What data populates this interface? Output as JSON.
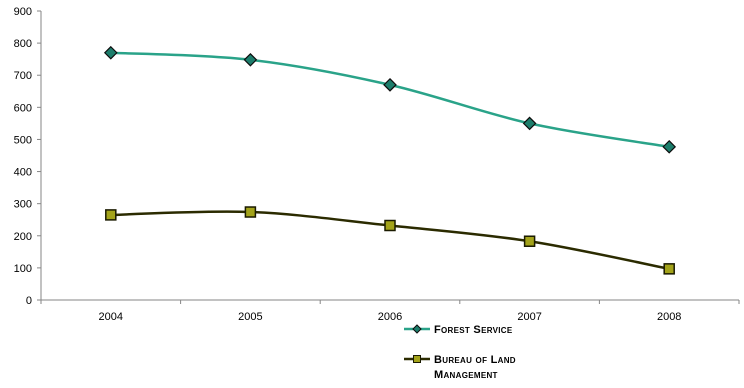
{
  "chart_data": {
    "type": "line",
    "categories": [
      "2004",
      "2005",
      "2006",
      "2007",
      "2008"
    ],
    "series": [
      {
        "name": "Forest Service",
        "values": [
          770,
          748,
          670,
          550,
          477
        ],
        "color": "#2aa389",
        "marker": "diamond",
        "marker_fill": "#1c7d6b"
      },
      {
        "name": "Bureau of Land Management",
        "name_lines": [
          "Bureau of Land",
          "Management"
        ],
        "values": [
          265,
          274,
          232,
          183,
          97
        ],
        "color": "#2b2b00",
        "marker": "square",
        "marker_fill": "#a3a31a"
      }
    ],
    "yticks": [
      "0",
      "100",
      "200",
      "300",
      "400",
      "500",
      "600",
      "700",
      "800",
      "900"
    ],
    "ylim": [
      0,
      900
    ],
    "grid": false,
    "title": "",
    "xlabel": "",
    "ylabel": "",
    "legend_position": "bottom-right"
  }
}
